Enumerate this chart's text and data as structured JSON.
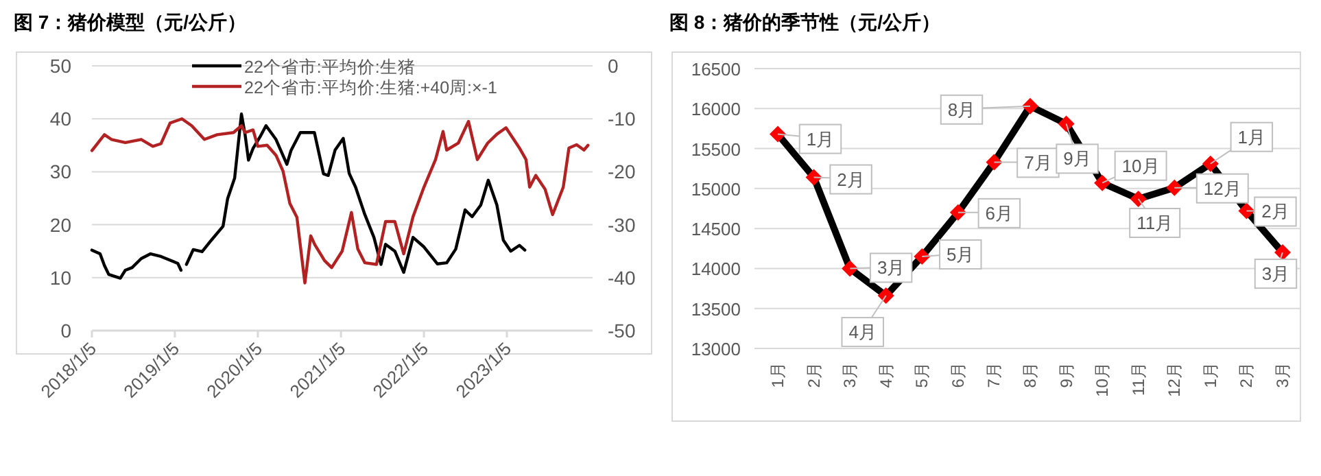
{
  "chart_data": [
    {
      "type": "line",
      "title": "图 7：猪价模型（元/公斤）",
      "xlim": [
        "2018-01-05",
        "2024-01-05"
      ],
      "xticks": [
        {
          "value": "2018-01-05",
          "label": "2018/1/5"
        },
        {
          "value": "2019-01-05",
          "label": "2019/1/5"
        },
        {
          "value": "2020-01-05",
          "label": "2020/1/5"
        },
        {
          "value": "2021-01-05",
          "label": "2021/1/5"
        },
        {
          "value": "2022-01-05",
          "label": "2022/1/5"
        },
        {
          "value": "2023-01-05",
          "label": "2023/1/5"
        }
      ],
      "ylim": [
        0,
        50
      ],
      "yticks": [
        0,
        10,
        20,
        30,
        40,
        50
      ],
      "y2lim": [
        -50,
        0
      ],
      "y2ticks": [
        -50,
        -40,
        -30,
        -20,
        -10,
        0
      ],
      "grid": "y",
      "legend": "top",
      "series": [
        {
          "name": "22个省市:平均价:生猪",
          "color": "#000000",
          "x": [
            "2018-01-05",
            "2018-02-10",
            "2018-03-01",
            "2018-03-20",
            "2018-05-10",
            "2018-06-01",
            "2018-07-01",
            "2018-08-10",
            "2018-09-20",
            "2018-11-05",
            "2019-01-18",
            "2019-02-01",
            "2019-02-12",
            "2019-02-25",
            "2019-03-27",
            "2019-05-05",
            "2019-06-15",
            "2019-08-05",
            "2019-08-25",
            "2019-09-25",
            "2019-10-25",
            "2019-11-10",
            "2019-11-25",
            "2019-12-15",
            "2020-01-15",
            "2020-02-10",
            "2020-03-25",
            "2020-05-12",
            "2020-05-30",
            "2020-07-10",
            "2020-09-10",
            "2020-10-20",
            "2020-11-10",
            "2020-12-10",
            "2021-01-15",
            "2021-02-10",
            "2021-03-10",
            "2021-04-20",
            "2021-05-30",
            "2021-06-30",
            "2021-07-20",
            "2021-08-30",
            "2021-10-08",
            "2021-11-18",
            "2022-01-05",
            "2022-03-05",
            "2022-04-15",
            "2022-05-25",
            "2022-07-05",
            "2022-08-05",
            "2022-09-12",
            "2022-10-15",
            "2022-11-22",
            "2022-12-20",
            "2023-01-22",
            "2023-03-01",
            "2023-03-25"
          ],
          "values": [
            15.2,
            14.5,
            12.3,
            10.6,
            9.9,
            11.4,
            11.9,
            13.6,
            14.5,
            14.0,
            12.7,
            11.4,
            null,
            12.5,
            15.3,
            14.9,
            17.1,
            19.7,
            24.9,
            28.8,
            40.9,
            37.0,
            32.2,
            34.4,
            36.6,
            38.7,
            36.1,
            31.4,
            34.0,
            37.4,
            37.4,
            29.6,
            29.3,
            34.1,
            36.3,
            29.7,
            27.1,
            21.9,
            17.6,
            12.5,
            16.3,
            15.0,
            11.0,
            17.6,
            15.8,
            12.6,
            12.8,
            15.4,
            22.8,
            21.5,
            23.7,
            28.4,
            23.7,
            17.1,
            15.0,
            16.1,
            15.2
          ]
        },
        {
          "name": "22个省市:平均价:生猪:+40周:×-1",
          "color": "#b22222",
          "axis": "y2",
          "x": [
            "2018-01-05",
            "2018-03-01",
            "2018-04-01",
            "2018-06-01",
            "2018-08-10",
            "2018-09-30",
            "2018-11-05",
            "2018-12-15",
            "2019-02-05",
            "2019-03-20",
            "2019-05-15",
            "2019-07-10",
            "2019-09-20",
            "2019-10-25",
            "2019-11-10",
            "2019-12-15",
            "2020-01-05",
            "2020-02-15",
            "2020-03-25",
            "2020-04-25",
            "2020-05-25",
            "2020-06-25",
            "2020-07-30",
            "2020-08-25",
            "2020-09-12",
            "2020-10-25",
            "2020-11-25",
            "2021-01-10",
            "2021-02-20",
            "2021-03-20",
            "2021-04-20",
            "2021-06-10",
            "2021-07-20",
            "2021-08-30",
            "2021-10-08",
            "2021-11-18",
            "2022-01-05",
            "2022-02-25",
            "2022-03-30",
            "2022-04-15",
            "2022-06-05",
            "2022-07-20",
            "2022-08-28",
            "2022-10-12",
            "2022-11-22",
            "2023-01-01",
            "2023-03-01",
            "2023-03-30",
            "2023-04-15",
            "2023-05-12",
            "2023-06-22",
            "2023-07-25",
            "2023-09-10",
            "2023-10-05",
            "2023-11-08",
            "2023-12-10",
            "2023-12-28"
          ],
          "values": [
            -16.0,
            -13.0,
            -13.9,
            -14.5,
            -13.9,
            -15.2,
            -14.7,
            -10.8,
            -10.0,
            -11.3,
            -13.9,
            -13.0,
            -12.6,
            -11.3,
            -12.6,
            -12.1,
            -15.2,
            -15.0,
            -16.9,
            -19.9,
            -26.0,
            -28.6,
            -41.0,
            -32.1,
            -33.8,
            -36.8,
            -38.1,
            -35.0,
            -27.7,
            -34.6,
            -37.2,
            -37.5,
            -29.4,
            -29.4,
            -35.5,
            -28.5,
            -22.9,
            -17.7,
            -12.4,
            -15.9,
            -14.6,
            -10.5,
            -17.7,
            -14.6,
            -12.9,
            -11.7,
            -15.5,
            -17.7,
            -22.9,
            -20.7,
            -23.3,
            -28.1,
            -22.9,
            -15.5,
            -14.9,
            -15.9,
            -15.0
          ]
        }
      ]
    },
    {
      "type": "line",
      "title": "图 8：猪价的季节性（元/公斤）",
      "categories": [
        "1月",
        "2月",
        "3月",
        "4月",
        "5月",
        "6月",
        "7月",
        "8月",
        "9月",
        "10月",
        "11月",
        "12月",
        "1月",
        "2月",
        "3月"
      ],
      "ylim": [
        13000,
        16500
      ],
      "yticks": [
        13000,
        13500,
        14000,
        14500,
        15000,
        15500,
        16000,
        16500
      ],
      "grid": "y",
      "marker": "diamond",
      "series": [
        {
          "color": "#000000",
          "colors": [
            "#ff0000",
            "#ff0000",
            "#ff0000",
            "#ff0000",
            "#ff0000",
            "#ff0000",
            "#ff0000",
            "#ff0000",
            "#ff0000",
            "#ff0000",
            "#ff0000",
            "#ff0000",
            "#ff0000",
            "#ff0000",
            "#ff0000"
          ],
          "values": [
            15680,
            15140,
            14000,
            13660,
            14150,
            14700,
            15330,
            16030,
            15810,
            15070,
            14870,
            15010,
            15310,
            14720,
            14200
          ]
        }
      ],
      "annotations": [
        {
          "text": "1月",
          "x": "1月",
          "y": 15680
        },
        {
          "text": "2月",
          "x": "2月",
          "y": 15140
        },
        {
          "text": "3月",
          "x": "3月",
          "y": 14000
        },
        {
          "text": "4月",
          "x": "4月",
          "y": 13660
        },
        {
          "text": "5月",
          "x": "5月",
          "y": 14150
        },
        {
          "text": "6月",
          "x": "6月",
          "y": 14700
        },
        {
          "text": "7月",
          "x": "7月",
          "y": 15330
        },
        {
          "text": "8月",
          "x": "8月",
          "y": 16030
        },
        {
          "text": "9月",
          "x": "9月",
          "y": 15810
        },
        {
          "text": "10月",
          "x": "10月",
          "y": 15070
        },
        {
          "text": "11月",
          "x": "11月",
          "y": 14870
        },
        {
          "text": "12月",
          "x": "12月",
          "y": 15010
        },
        "1月",
        "2月",
        "3月"
      ]
    }
  ]
}
